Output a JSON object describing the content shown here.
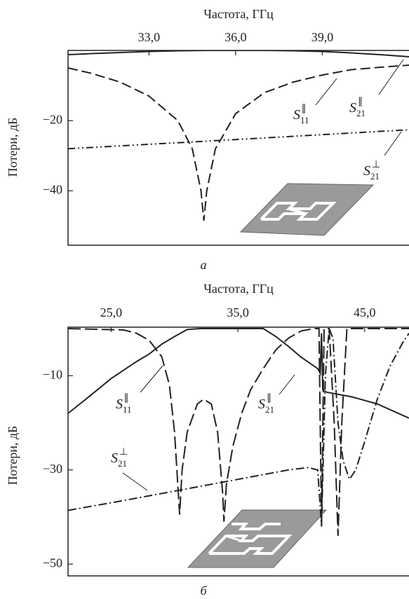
{
  "chart_data": [
    {
      "type": "line",
      "x_label": "Частота, ГГц",
      "y_label": "Потери, дБ",
      "caption": "а",
      "xlim": [
        30.2,
        42
      ],
      "ylim": [
        -55.5,
        0
      ],
      "xticks": [
        {
          "value": 33,
          "label": "33,0"
        },
        {
          "value": 36,
          "label": "36,0"
        },
        {
          "value": 39,
          "label": "39,0"
        }
      ],
      "yticks": [
        {
          "value": -20,
          "label": "−20"
        },
        {
          "value": -40,
          "label": "−40"
        }
      ],
      "series": [
        {
          "name": "S11∥",
          "color": "#222222",
          "line_style": "dashed",
          "x": [
            30.2,
            31,
            32,
            33,
            34,
            34.5,
            34.8,
            34.9,
            35.0,
            35.3,
            36,
            37,
            38,
            39,
            40,
            41,
            42
          ],
          "values": [
            -5,
            -6.5,
            -9,
            -13,
            -20,
            -28,
            -40,
            -48.5,
            -40,
            -28,
            -18,
            -12,
            -9,
            -7,
            -5.5,
            -4.8,
            -4.2
          ]
        },
        {
          "name": "S21∥",
          "color": "#222222",
          "line_style": "solid",
          "x": [
            30.2,
            31,
            32,
            33,
            34,
            35,
            36,
            37,
            38,
            39,
            40,
            41,
            42
          ],
          "values": [
            -1.2,
            -0.9,
            -0.6,
            -0.3,
            -0.1,
            0,
            0,
            0,
            -0.1,
            -0.3,
            -0.7,
            -1.2,
            -1.8
          ]
        },
        {
          "name": "S21⊥",
          "color": "#222222",
          "line_style": "dashdotdot",
          "x": [
            30.2,
            36,
            42
          ],
          "values": [
            -28,
            -25.4,
            -22.6
          ]
        }
      ]
    },
    {
      "type": "line",
      "x_label": "Частота, ГГц",
      "y_label": "Потери, дБ",
      "caption": "б",
      "xlim": [
        21.6,
        48.5
      ],
      "ylim": [
        -52.5,
        0.3
      ],
      "xticks": [
        {
          "value": 25,
          "label": "25,0"
        },
        {
          "value": 35,
          "label": "35,0"
        },
        {
          "value": 45,
          "label": "45,0"
        }
      ],
      "yticks": [
        {
          "value": -10,
          "label": "−10"
        },
        {
          "value": -30,
          "label": "−30"
        },
        {
          "value": -50,
          "label": "−50"
        }
      ],
      "series": [
        {
          "name": "S11∥",
          "color": "#222222",
          "line_style": "longdash",
          "x": [
            21.6,
            26,
            27,
            28,
            29,
            29.6,
            30.0,
            30.3,
            30.4,
            30.6,
            31,
            31.8,
            32.3,
            32.9,
            33.4,
            33.8,
            33.9,
            34.1,
            34.6,
            35.3,
            36,
            37,
            38,
            39,
            40,
            41,
            41.4,
            41.6,
            41.8,
            42.2,
            42.6,
            42.9,
            43.2,
            43.6,
            48.5
          ],
          "values": [
            0,
            -0.3,
            -1,
            -2.5,
            -6,
            -12,
            -22,
            -35,
            -39.5,
            -30,
            -22,
            -16,
            -15,
            -16,
            -22,
            -35,
            -41,
            -33,
            -25,
            -18,
            -13,
            -8.5,
            -4.5,
            -2,
            -0.5,
            0,
            0,
            -42,
            0,
            0,
            -20,
            -44,
            -20,
            0,
            0
          ]
        },
        {
          "name": "S21∥",
          "color": "#222222",
          "line_style": "solid",
          "x": [
            21.6,
            23,
            25,
            27,
            28,
            29,
            30,
            31,
            32,
            37,
            38,
            39,
            40,
            41.3,
            41.5,
            41.6,
            41.7,
            42,
            44,
            46,
            48.5
          ],
          "values": [
            -18,
            -15,
            -10.6,
            -7,
            -5.4,
            -3.3,
            -1.7,
            -0.2,
            0,
            0,
            -1.7,
            -3.8,
            -6.1,
            -8.5,
            -9.5,
            -1,
            -13,
            -13.5,
            -14.5,
            -16,
            -19
          ]
        },
        {
          "name": "S21⊥",
          "color": "#222222",
          "line_style": "dashdot",
          "x": [
            21.6,
            26,
            30,
            35,
            39,
            40.5,
            41.3,
            41.6,
            41.9,
            42.2,
            42.5,
            42.9,
            43.3,
            43.8,
            44.3,
            45,
            46,
            47,
            48,
            48.5
          ],
          "values": [
            -38.6,
            -36.5,
            -34.5,
            -32,
            -30,
            -29.5,
            -30,
            -42,
            -10,
            0,
            -2,
            -20,
            -28,
            -32,
            -30,
            -24,
            -15,
            -8,
            -3,
            -1
          ]
        }
      ]
    }
  ]
}
